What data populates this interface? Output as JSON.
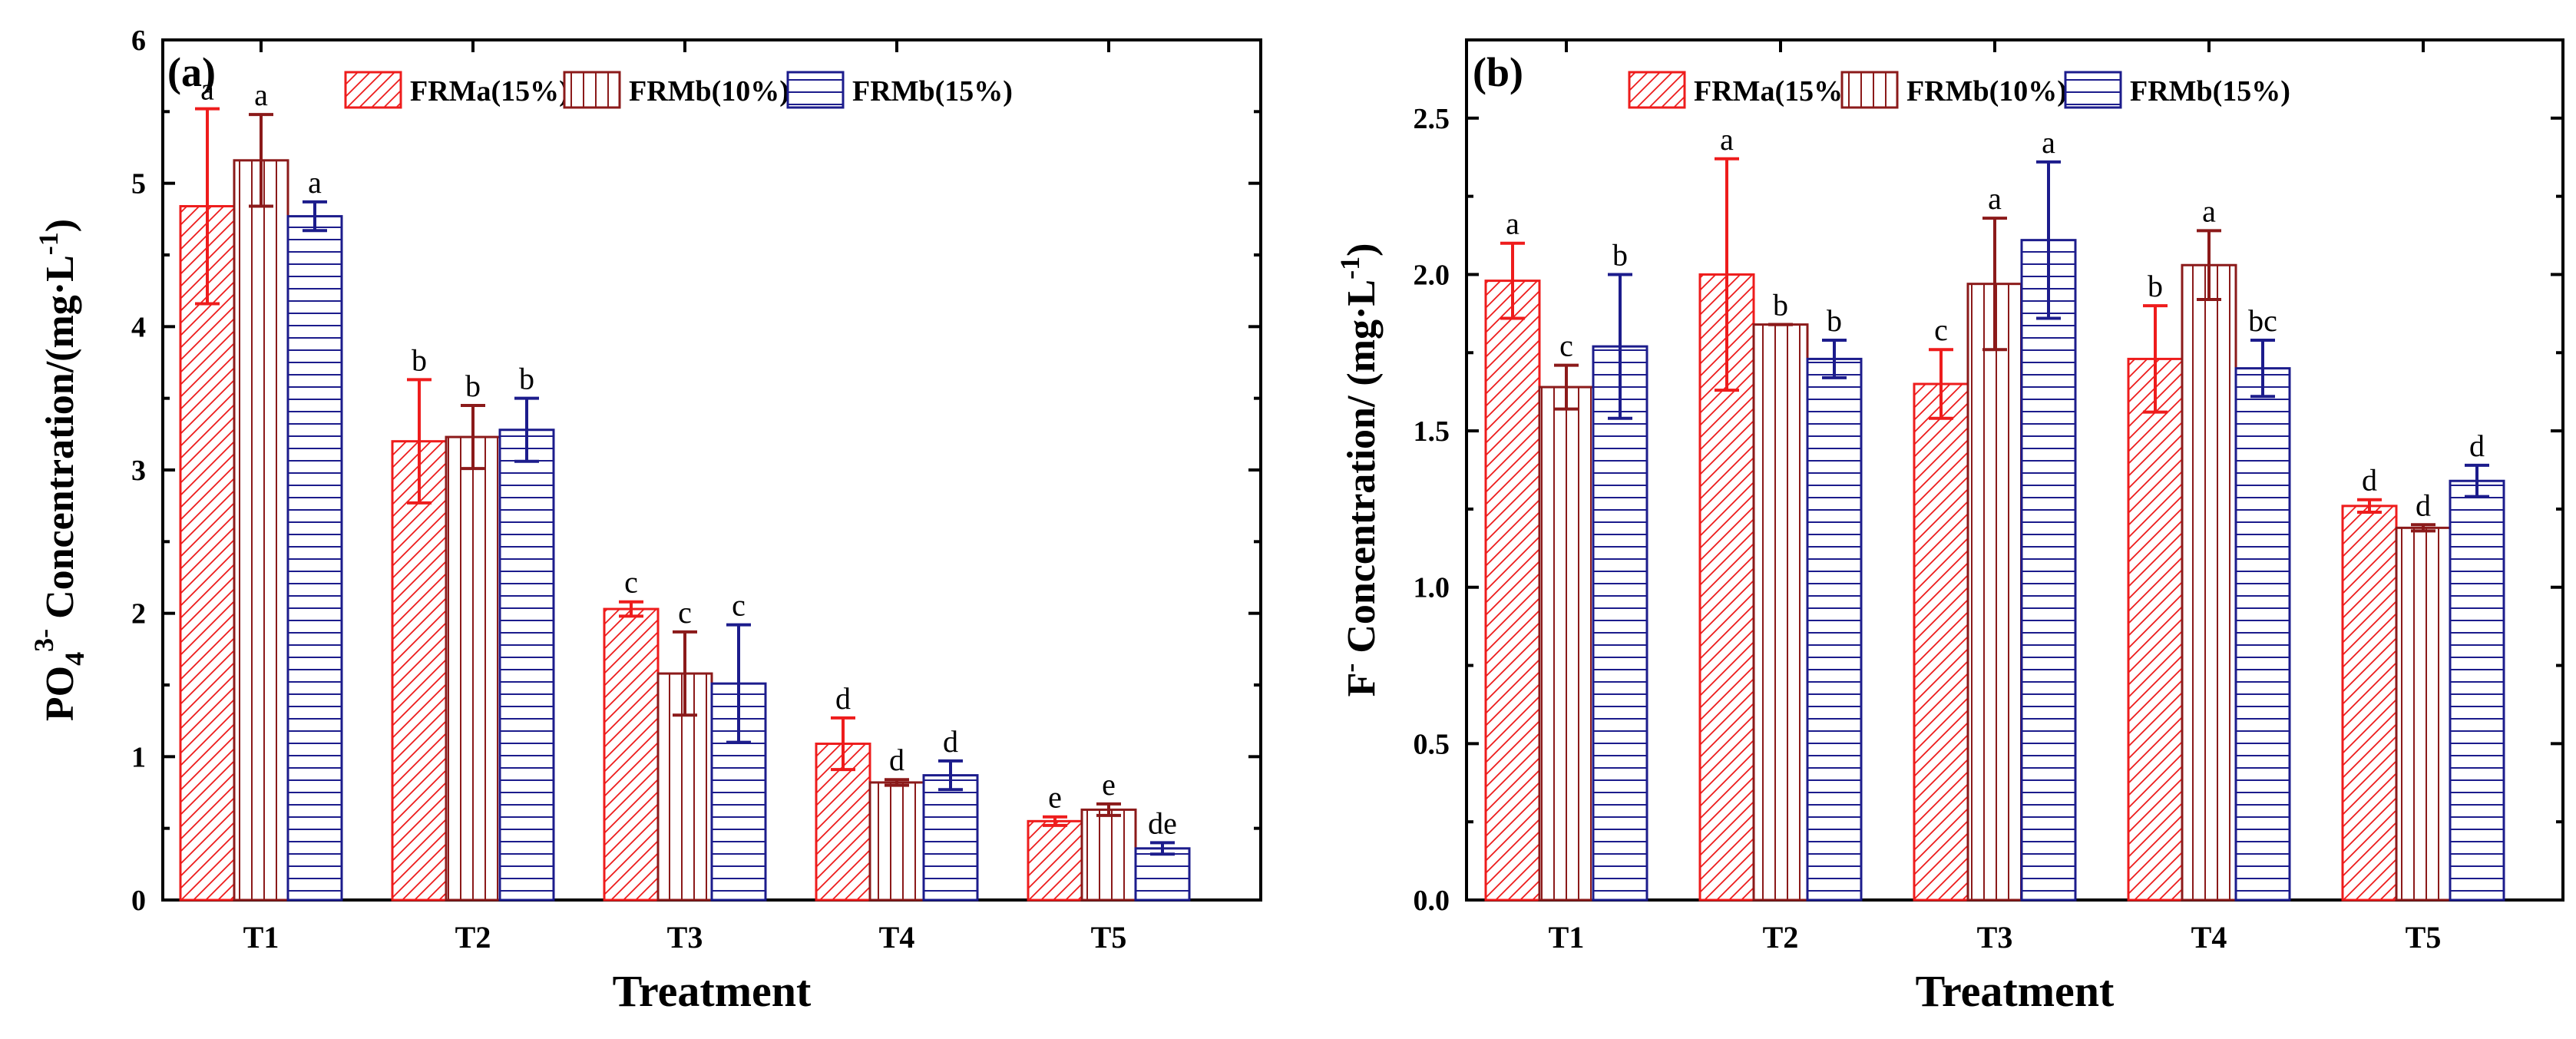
{
  "chart_data": [
    {
      "type": "bar",
      "panel": "(a)",
      "title": "",
      "xlabel": "Treatment",
      "ylabel_parts": [
        "PO",
        "4",
        "3-",
        " Concentration/(mg·L",
        "-1",
        ")"
      ],
      "ylim": [
        0,
        6
      ],
      "yticks": [
        "0",
        "1",
        "2",
        "3",
        "4",
        "5",
        "6"
      ],
      "categories": [
        "T1",
        "T2",
        "T3",
        "T4",
        "T5"
      ],
      "series": [
        {
          "name": "FRMa(15%)",
          "color": "#ee1c1c",
          "pattern": "diag",
          "values": [
            4.84,
            3.2,
            2.03,
            1.09,
            0.55
          ],
          "errors": [
            0.68,
            0.43,
            0.05,
            0.18,
            0.03
          ],
          "letters": [
            "a",
            "b",
            "c",
            "d",
            "e"
          ]
        },
        {
          "name": "FRMb(10%)",
          "color": "#8b1a1a",
          "pattern": "vert",
          "values": [
            5.16,
            3.23,
            1.58,
            0.82,
            0.63
          ],
          "errors": [
            0.32,
            0.22,
            0.29,
            0.02,
            0.04
          ],
          "letters": [
            "a",
            "b",
            "c",
            "d",
            "e"
          ]
        },
        {
          "name": "FRMb(15%)",
          "color": "#1c1c8c",
          "pattern": "horiz",
          "values": [
            4.77,
            3.28,
            1.51,
            0.87,
            0.36
          ],
          "errors": [
            0.1,
            0.22,
            0.41,
            0.1,
            0.04
          ],
          "letters": [
            "a",
            "b",
            "c",
            "d",
            "de"
          ]
        }
      ]
    },
    {
      "type": "bar",
      "panel": "(b)",
      "title": "",
      "xlabel": "Treatment",
      "ylabel_parts": [
        "F",
        "-",
        " Concentration/ (mg·L",
        "-1",
        ")"
      ],
      "ylim": [
        0,
        2.75
      ],
      "yticks": [
        "0.0",
        "0.5",
        "1.0",
        "1.5",
        "2.0",
        "2.5"
      ],
      "categories": [
        "T1",
        "T2",
        "T3",
        "T4",
        "T5"
      ],
      "series": [
        {
          "name": "FRMa(15%)",
          "color": "#ee1c1c",
          "pattern": "diag",
          "values": [
            1.98,
            2.0,
            1.65,
            1.73,
            1.26
          ],
          "errors": [
            0.12,
            0.37,
            0.11,
            0.17,
            0.02
          ],
          "letters": [
            "a",
            "a",
            "c",
            "b",
            "d"
          ]
        },
        {
          "name": "FRMb(10%)",
          "color": "#8b1a1a",
          "pattern": "vert",
          "values": [
            1.64,
            1.84,
            1.97,
            2.03,
            1.19
          ],
          "errors": [
            0.07,
            0.0,
            0.21,
            0.11,
            0.01
          ],
          "letters": [
            "c",
            "b",
            "a",
            "a",
            "d"
          ]
        },
        {
          "name": "FRMb(15%)",
          "color": "#1c1c8c",
          "pattern": "horiz",
          "values": [
            1.77,
            1.73,
            2.11,
            1.7,
            1.34
          ],
          "errors": [
            0.23,
            0.06,
            0.25,
            0.09,
            0.05
          ],
          "letters": [
            "b",
            "b",
            "a",
            "bc",
            "d"
          ]
        }
      ]
    }
  ]
}
